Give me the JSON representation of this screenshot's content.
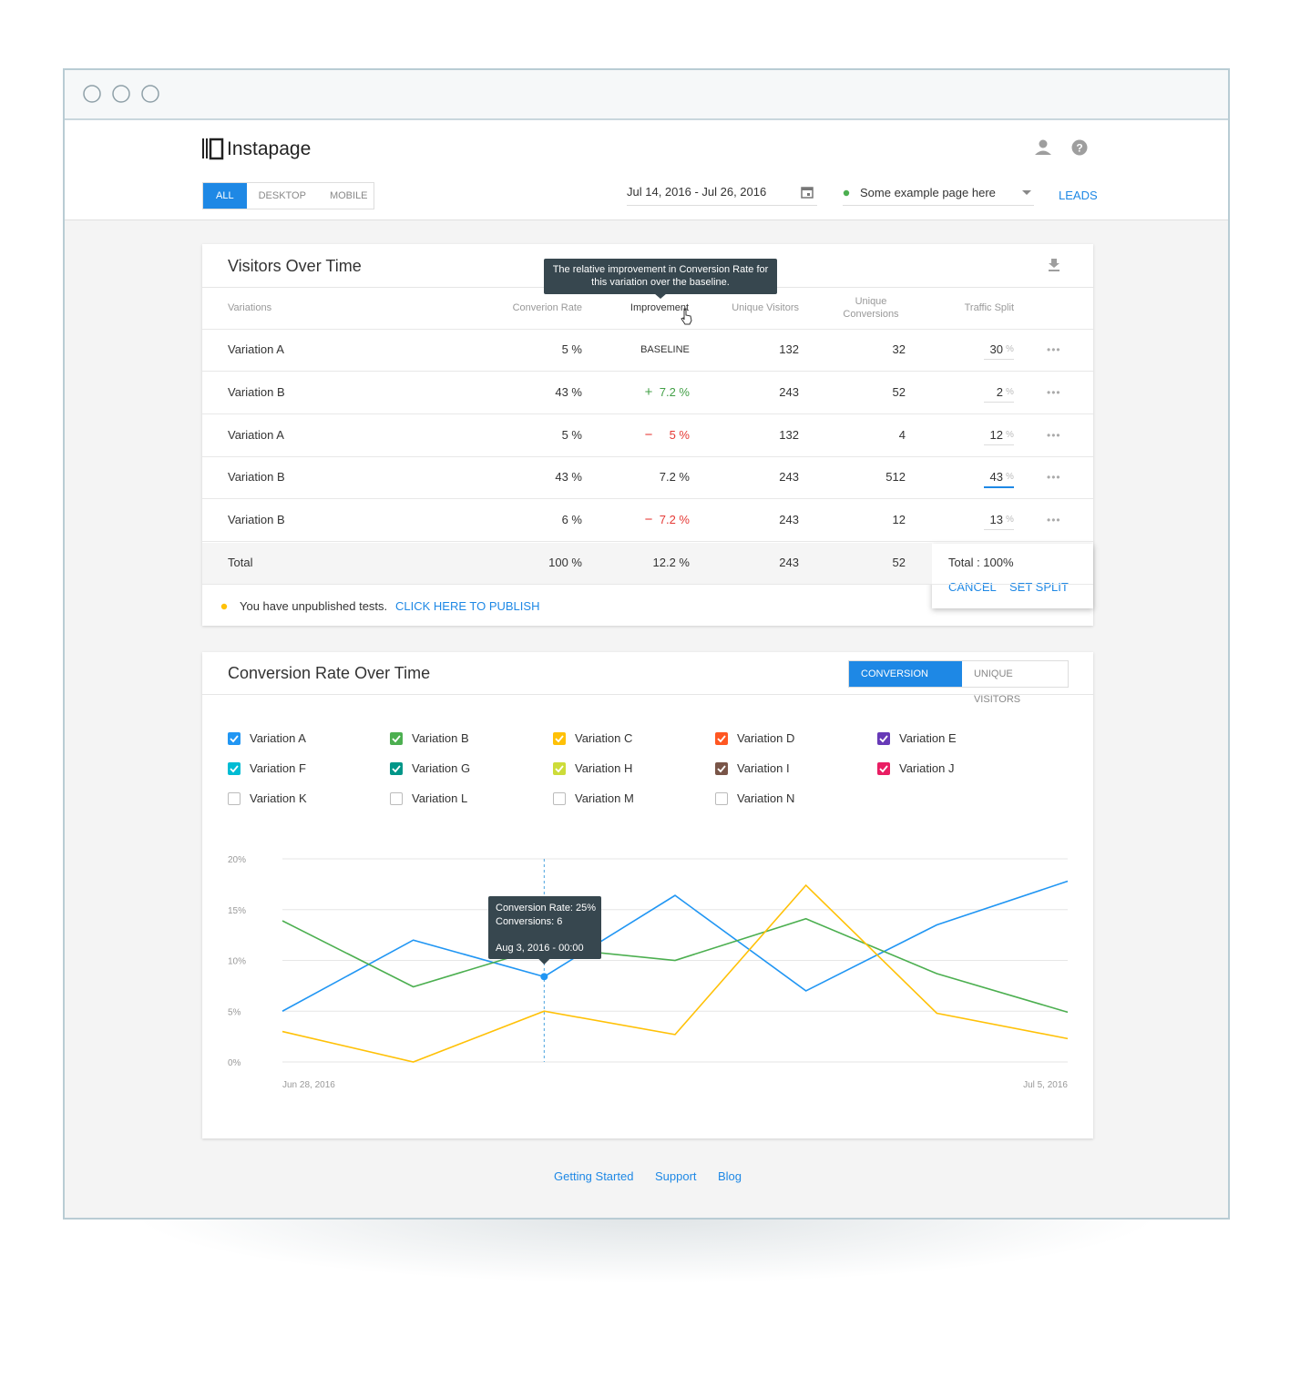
{
  "header": {
    "logo": "Instapage",
    "tabs": [
      "ALL",
      "DESKTOP",
      "MOBILE"
    ],
    "date_range": "Jul 14, 2016 - Jul 26, 2016",
    "page_select": "Some example page here",
    "leads": "LEADS"
  },
  "table": {
    "title": "Visitors Over Time",
    "columns": [
      "Variations",
      "Converion Rate",
      "Improvement",
      "Unique Visitors",
      "Unique Conversions",
      "Traffic Split"
    ],
    "tooltip": "The relative improvement in Conversion Rate for this variation over the baseline.",
    "rows": [
      {
        "name": "Variation A",
        "rate": "5 %",
        "improvement": {
          "text": "BASELINE"
        },
        "visitors": "132",
        "conversions": "32",
        "split": {
          "value": "30",
          "unit": "%"
        }
      },
      {
        "name": "Variation B",
        "rate": "43 %",
        "improvement": {
          "sign": "+",
          "text": "7.2 %"
        },
        "visitors": "243",
        "conversions": "52",
        "split": {
          "value": "2",
          "unit": "%"
        }
      },
      {
        "name": "Variation A",
        "rate": "5 %",
        "improvement": {
          "sign": "−",
          "text": "5 %"
        },
        "visitors": "132",
        "conversions": "4",
        "split": {
          "value": "12",
          "unit": "%"
        }
      },
      {
        "name": "Variation B",
        "rate": "43 %",
        "improvement": {
          "text": "7.2 %"
        },
        "visitors": "243",
        "conversions": "512",
        "split": {
          "value": "43",
          "unit": "%"
        }
      },
      {
        "name": "Variation B",
        "rate": "6 %",
        "improvement": {
          "sign": "−",
          "text": "7.2 %"
        },
        "visitors": "243",
        "conversions": "12",
        "split": {
          "value": "13",
          "unit": "%"
        }
      }
    ],
    "total": {
      "label": "Total",
      "rate": "100 %",
      "improvement": "12.2 %",
      "visitors": "243",
      "conversions": "52"
    },
    "split_popover": {
      "total": "Total : 100%",
      "cancel": "CANCEL",
      "set": "SET SPLIT"
    },
    "notice": {
      "text": "You have unpublished tests.",
      "link": "CLICK HERE TO PUBLISH"
    }
  },
  "chart_data": {
    "type": "line",
    "title": "Conversion Rate Over Time",
    "toggles": [
      "CONVERSION RATE",
      "UNIQUE VISITORS"
    ],
    "categories": [
      "Jun 28, 2016",
      null,
      null,
      null,
      null,
      null,
      "Jul 5, 2016"
    ],
    "series": [
      {
        "name": "Variation A",
        "color": "#2196f3",
        "checked": true,
        "values": [
          5,
          12,
          8.4,
          16.4,
          7,
          13.5,
          17.8
        ]
      },
      {
        "name": "Variation B",
        "color": "#4caf50",
        "checked": true,
        "values": [
          13.9,
          7.4,
          11.3,
          10,
          14.1,
          8.7,
          4.9
        ]
      },
      {
        "name": "Variation C",
        "color": "#ffc107",
        "checked": true,
        "values": [
          3,
          0,
          5,
          2.7,
          17.4,
          4.8,
          2.3
        ]
      },
      {
        "name": "Variation D",
        "color": "#ff5722",
        "checked": true
      },
      {
        "name": "Variation E",
        "color": "#673ab7",
        "checked": true
      },
      {
        "name": "Variation F",
        "color": "#00bcd4",
        "checked": true
      },
      {
        "name": "Variation G",
        "color": "#009688",
        "checked": true
      },
      {
        "name": "Variation H",
        "color": "#cddc39",
        "checked": true
      },
      {
        "name": "Variation I",
        "color": "#795548",
        "checked": true
      },
      {
        "name": "Variation J",
        "color": "#e91e63",
        "checked": true
      },
      {
        "name": "Variation K",
        "checked": false
      },
      {
        "name": "Variation L",
        "checked": false
      },
      {
        "name": "Variation M",
        "checked": false
      },
      {
        "name": "Variation N",
        "checked": false
      }
    ],
    "ylim": [
      0,
      20
    ],
    "yticks": [
      {
        "value": 0,
        "label": "0%"
      },
      {
        "value": 5,
        "label": "5%"
      },
      {
        "value": 10,
        "label": "10%"
      },
      {
        "value": 15,
        "label": "15%"
      },
      {
        "value": 20,
        "label": "20%"
      }
    ],
    "grid": true,
    "tooltip": {
      "rate": "Conversion Rate: 25%",
      "conversions": "Conversions: 6",
      "date": "Aug 3, 2016 - 00:00"
    }
  },
  "footer": {
    "links": [
      "Getting Started",
      "Support",
      "Blog"
    ]
  }
}
